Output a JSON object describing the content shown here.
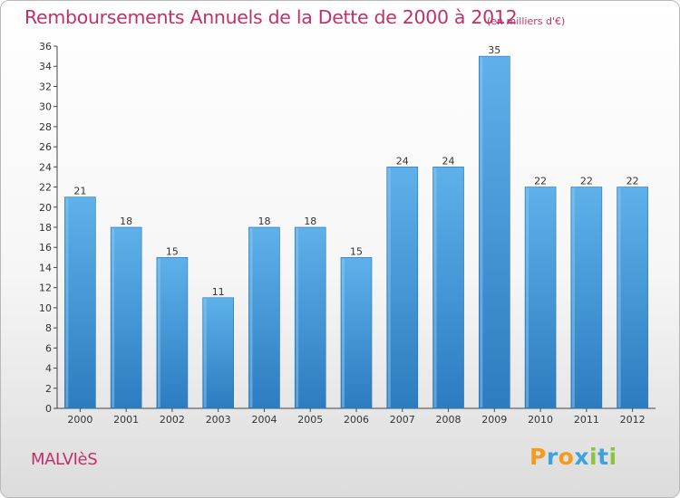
{
  "header": {
    "title": "Remboursements Annuels de la Dette de 2000 à 2012",
    "unit": "(en milliers d'€)"
  },
  "footer": {
    "town": "MALVIèS",
    "logo": [
      "P",
      "r",
      "o",
      "x",
      "i",
      "t",
      "i"
    ]
  },
  "colors": {
    "title": "#c0306a",
    "bar_top": "#5eb1ea",
    "bar_bottom": "#2c7cc0",
    "logo": [
      "#f39a1f",
      "#3fa2dc",
      "#f39a1f",
      "#3fa2dc",
      "#8cc43f",
      "#3fa2dc",
      "#8cc43f"
    ]
  },
  "chart_data": {
    "type": "bar",
    "title": "Remboursements Annuels de la Dette de 2000 à 2012",
    "subtitle": "(en milliers d'€)",
    "xlabel": "",
    "ylabel": "",
    "categories": [
      "2000",
      "2001",
      "2002",
      "2003",
      "2004",
      "2005",
      "2006",
      "2007",
      "2008",
      "2009",
      "2010",
      "2011",
      "2012"
    ],
    "values": [
      21,
      18,
      15,
      11,
      18,
      18,
      15,
      24,
      24,
      35,
      22,
      22,
      22
    ],
    "ylim": [
      0,
      36
    ],
    "yticks": [
      0,
      2,
      4,
      6,
      8,
      10,
      12,
      14,
      16,
      18,
      20,
      22,
      24,
      26,
      28,
      30,
      32,
      34,
      36
    ],
    "grid": false,
    "data_labels": true
  }
}
